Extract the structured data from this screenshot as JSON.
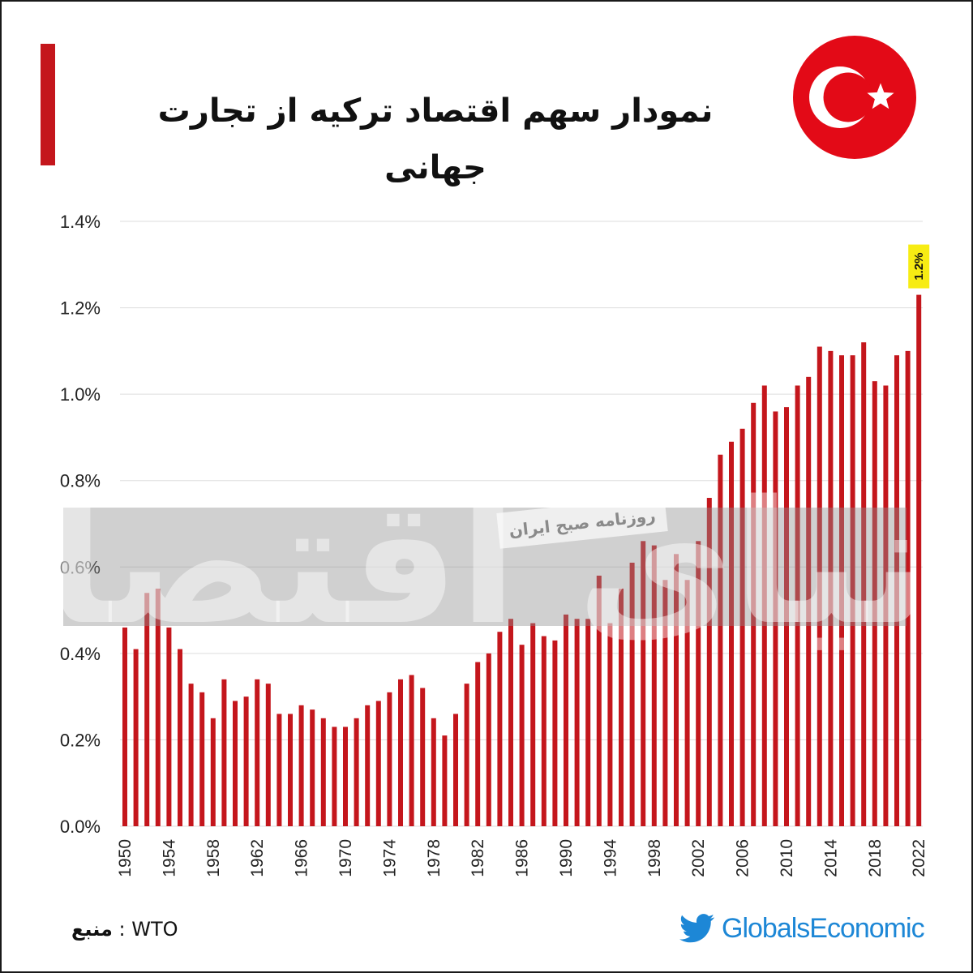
{
  "title": "نمودار سهم اقتصاد ترکیه از تجارت جهانی",
  "flag": {
    "name": "turkey-flag",
    "color": "#e30a17"
  },
  "colors": {
    "bar": "#c4161c",
    "accent": "#c4161c",
    "highlight": "#f7ec13",
    "brand": "#1d87d6"
  },
  "watermark": {
    "main": "دنیای اقتصاد",
    "stamp": "روزنامه صبح ایران"
  },
  "source": {
    "label": "منبع",
    "separator": ":",
    "value": "WTO"
  },
  "brand": {
    "icon": "twitter-bird-icon",
    "name": "GlobalsEconomic"
  },
  "chart_data": {
    "type": "bar",
    "title": "نمودار سهم اقتصاد ترکیه از تجارت جهانی",
    "xlabel": "",
    "ylabel": "",
    "y_format": "percent",
    "ylim": [
      0,
      1.4
    ],
    "yticks": [
      "0.0%",
      "0.2%",
      "0.4%",
      "0.6%",
      "0.8%",
      "1.0%",
      "1.2%",
      "1.4%"
    ],
    "xticks": [
      "1950",
      "1954",
      "1958",
      "1962",
      "1966",
      "1970",
      "1974",
      "1978",
      "1982",
      "1986",
      "1990",
      "1994",
      "1998",
      "2002",
      "2006",
      "2010",
      "2014",
      "2018",
      "2022"
    ],
    "grid": "horizontal",
    "categories": [
      "1950",
      "1951",
      "1952",
      "1953",
      "1954",
      "1955",
      "1956",
      "1957",
      "1958",
      "1959",
      "1960",
      "1961",
      "1962",
      "1963",
      "1964",
      "1965",
      "1966",
      "1967",
      "1968",
      "1969",
      "1970",
      "1971",
      "1972",
      "1973",
      "1974",
      "1975",
      "1976",
      "1977",
      "1978",
      "1979",
      "1980",
      "1981",
      "1982",
      "1983",
      "1984",
      "1985",
      "1986",
      "1987",
      "1988",
      "1989",
      "1990",
      "1991",
      "1992",
      "1993",
      "1994",
      "1995",
      "1996",
      "1997",
      "1998",
      "1999",
      "2000",
      "2001",
      "2002",
      "2003",
      "2004",
      "2005",
      "2006",
      "2007",
      "2008",
      "2009",
      "2010",
      "2011",
      "2012",
      "2013",
      "2014",
      "2015",
      "2016",
      "2017",
      "2018",
      "2019",
      "2020",
      "2021",
      "2022"
    ],
    "values": [
      0.46,
      0.41,
      0.54,
      0.55,
      0.46,
      0.41,
      0.33,
      0.31,
      0.25,
      0.34,
      0.29,
      0.3,
      0.34,
      0.33,
      0.26,
      0.26,
      0.28,
      0.27,
      0.25,
      0.23,
      0.23,
      0.25,
      0.28,
      0.29,
      0.31,
      0.34,
      0.35,
      0.32,
      0.25,
      0.21,
      0.26,
      0.33,
      0.38,
      0.4,
      0.45,
      0.48,
      0.42,
      0.47,
      0.44,
      0.43,
      0.49,
      0.48,
      0.48,
      0.58,
      0.47,
      0.55,
      0.61,
      0.66,
      0.65,
      0.57,
      0.63,
      0.57,
      0.66,
      0.76,
      0.86,
      0.89,
      0.92,
      0.98,
      1.02,
      0.96,
      0.97,
      1.02,
      1.04,
      1.11,
      1.1,
      1.09,
      1.09,
      1.12,
      1.03,
      1.02,
      1.09,
      1.1,
      1.23
    ],
    "annotations": [
      {
        "category": "2022",
        "text": "1.2%"
      }
    ]
  }
}
